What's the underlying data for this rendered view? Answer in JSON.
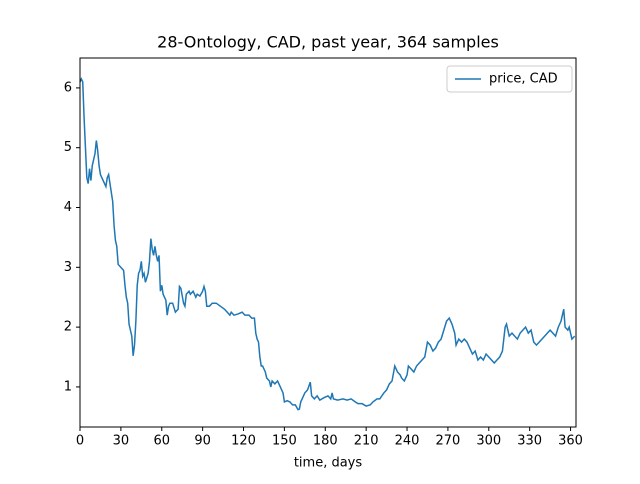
{
  "chart_data": {
    "type": "line",
    "title": "28-Ontology, CAD, past year, 364 samples",
    "xlabel": "time, days",
    "x": [
      0,
      1,
      2,
      3,
      4,
      5,
      6,
      7,
      8,
      9,
      11,
      12,
      13,
      14,
      15,
      17,
      19,
      20,
      21,
      22,
      24,
      25,
      26,
      27,
      28,
      30,
      32,
      33,
      34,
      35,
      36,
      37,
      38,
      39,
      40,
      41,
      42,
      43,
      44,
      45,
      46,
      47,
      48,
      50,
      51,
      52,
      53,
      54,
      55,
      56,
      57,
      58,
      59,
      60,
      61,
      62,
      63,
      64,
      65,
      66,
      68,
      70,
      72,
      73,
      74,
      76,
      77,
      78,
      80,
      81,
      83,
      85,
      86,
      88,
      90,
      91,
      92,
      93,
      95,
      97,
      100,
      103,
      106,
      108,
      110,
      111,
      113,
      116,
      119,
      121,
      124,
      126,
      128,
      129,
      130,
      131,
      132,
      133,
      134,
      136,
      137,
      139,
      140,
      141,
      143,
      145,
      147,
      149,
      150,
      152,
      154,
      156,
      158,
      160,
      161,
      162,
      163,
      165,
      167,
      169,
      170,
      172,
      174,
      176,
      179,
      182,
      184,
      185,
      186,
      189,
      193,
      196,
      199,
      202,
      204,
      207,
      210,
      213,
      215,
      218,
      220,
      223,
      225,
      227,
      229,
      231,
      233,
      235,
      236,
      238,
      240,
      241,
      243,
      245,
      247,
      249,
      251,
      253,
      255,
      257,
      259,
      261,
      263,
      265,
      267,
      269,
      271,
      273,
      275,
      276,
      278,
      280,
      282,
      284,
      286,
      288,
      290,
      292,
      294,
      296,
      298,
      300,
      302,
      304,
      306,
      308,
      310,
      312,
      313,
      315,
      317,
      319,
      321,
      323,
      325,
      327,
      329,
      331,
      333,
      335,
      337,
      339,
      341,
      343,
      345,
      347,
      349,
      351,
      353,
      355,
      356,
      358,
      359,
      361,
      363
    ],
    "series": [
      {
        "name": "price, CAD",
        "color": "#1f77b4",
        "values": [
          6.1,
          6.15,
          6.1,
          5.5,
          5.0,
          4.5,
          4.4,
          4.65,
          4.45,
          4.7,
          4.9,
          5.12,
          4.95,
          4.7,
          4.55,
          4.45,
          4.35,
          4.5,
          4.55,
          4.4,
          4.1,
          3.7,
          3.45,
          3.35,
          3.05,
          3.0,
          2.95,
          2.7,
          2.5,
          2.4,
          2.05,
          1.95,
          1.85,
          1.52,
          1.7,
          2.1,
          2.7,
          2.9,
          2.95,
          3.1,
          2.85,
          2.9,
          2.75,
          2.9,
          3.1,
          3.48,
          3.3,
          3.2,
          3.35,
          3.2,
          3.1,
          3.2,
          2.6,
          2.7,
          2.55,
          2.5,
          2.45,
          2.2,
          2.35,
          2.4,
          2.4,
          2.25,
          2.3,
          2.68,
          2.65,
          2.4,
          2.35,
          2.55,
          2.6,
          2.55,
          2.6,
          2.5,
          2.55,
          2.52,
          2.6,
          2.68,
          2.6,
          2.35,
          2.35,
          2.4,
          2.4,
          2.35,
          2.3,
          2.25,
          2.2,
          2.25,
          2.2,
          2.22,
          2.25,
          2.2,
          2.2,
          2.15,
          2.15,
          1.9,
          1.8,
          1.75,
          1.5,
          1.35,
          1.35,
          1.25,
          1.15,
          1.1,
          1.0,
          1.1,
          1.05,
          1.1,
          1.0,
          0.9,
          0.75,
          0.77,
          0.75,
          0.7,
          0.7,
          0.62,
          0.63,
          0.75,
          0.8,
          0.9,
          0.95,
          1.08,
          0.85,
          0.8,
          0.85,
          0.78,
          0.82,
          0.85,
          0.8,
          0.9,
          0.8,
          0.78,
          0.8,
          0.78,
          0.8,
          0.75,
          0.72,
          0.72,
          0.68,
          0.7,
          0.75,
          0.8,
          0.8,
          0.9,
          0.95,
          1.05,
          1.1,
          1.35,
          1.25,
          1.2,
          1.15,
          1.1,
          1.2,
          1.35,
          1.3,
          1.25,
          1.35,
          1.4,
          1.45,
          1.5,
          1.75,
          1.7,
          1.6,
          1.65,
          1.75,
          1.8,
          1.95,
          2.1,
          2.15,
          2.05,
          1.9,
          1.7,
          1.8,
          1.75,
          1.8,
          1.75,
          1.65,
          1.55,
          1.6,
          1.45,
          1.5,
          1.45,
          1.55,
          1.5,
          1.45,
          1.4,
          1.45,
          1.5,
          1.6,
          2.0,
          2.05,
          1.85,
          1.9,
          1.85,
          1.8,
          1.9,
          1.95,
          2.0,
          1.9,
          1.95,
          1.75,
          1.7,
          1.75,
          1.8,
          1.85,
          1.9,
          1.95,
          1.9,
          1.85,
          2.0,
          2.1,
          2.3,
          2.0,
          1.95,
          2.0,
          1.8,
          1.85
        ]
      }
    ],
    "xlim": [
      0,
      364
    ],
    "ylim": [
      0.33,
      6.5
    ],
    "xticks": [
      0,
      30,
      60,
      90,
      120,
      150,
      180,
      210,
      240,
      270,
      300,
      330,
      360
    ],
    "yticks": [
      1,
      2,
      3,
      4,
      5,
      6
    ],
    "legend": "upper right"
  }
}
